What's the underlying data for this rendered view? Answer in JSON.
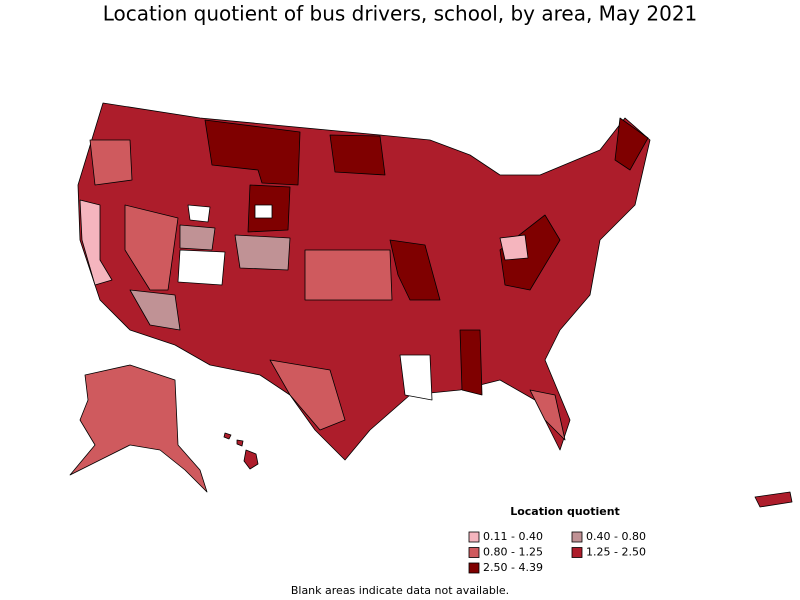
{
  "title": "Location quotient of bus drivers, school, by area, May 2021",
  "legend": {
    "title": "Location quotient",
    "items": [
      {
        "label": "0.11 - 0.40",
        "color": "#f5b5be"
      },
      {
        "label": "0.40 - 0.80",
        "color": "#c09295"
      },
      {
        "label": "0.80 - 1.25",
        "color": "#cf5a5e"
      },
      {
        "label": "1.25 - 2.50",
        "color": "#ad1d2b"
      },
      {
        "label": "2.50 - 4.39",
        "color": "#7f0000"
      }
    ]
  },
  "note": "Blank areas indicate data not available."
}
